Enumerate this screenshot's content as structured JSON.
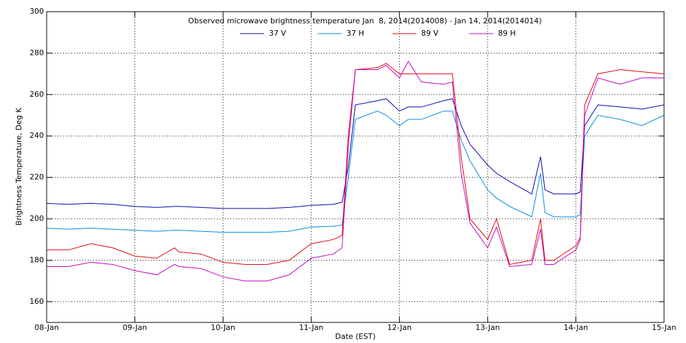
{
  "chart_data": {
    "type": "line",
    "title": "Observed microwave brightness temperature Jan  8, 2014(2014008) - Jan 14, 2014(2014014)",
    "xlabel": "Date (EST)",
    "ylabel": "Brightness Temperature, Deg K",
    "x": [
      8,
      8.25,
      8.5,
      8.75,
      9,
      9.25,
      9.45,
      9.5,
      9.75,
      10,
      10.25,
      10.5,
      10.75,
      11,
      11.25,
      11.35,
      11.42,
      11.5,
      11.75,
      11.85,
      12,
      12.1,
      12.25,
      12.5,
      12.6,
      12.7,
      12.8,
      13,
      13.1,
      13.25,
      13.5,
      13.6,
      13.65,
      13.75,
      14,
      14.05,
      14.1,
      14.25,
      14.5,
      14.75,
      15
    ],
    "series": [
      {
        "name": "37 V",
        "color": "#0000b0",
        "values": [
          207.5,
          207,
          207.5,
          207,
          206,
          205.5,
          206,
          206,
          205.5,
          205,
          205,
          205,
          205.5,
          206.5,
          207,
          208,
          225,
          255,
          257,
          258,
          252,
          254,
          254,
          257,
          258,
          245,
          236,
          226,
          222,
          218,
          212,
          230,
          214,
          212,
          212,
          213,
          245,
          255,
          254,
          253,
          255
        ]
      },
      {
        "name": "37 H",
        "color": "#0088e0",
        "values": [
          195.5,
          195,
          195.5,
          195,
          194.5,
          194,
          194.5,
          194.5,
          194,
          193.5,
          193.5,
          193.5,
          194,
          196,
          196.5,
          197,
          220,
          248,
          252,
          250,
          245,
          248,
          248,
          252,
          252,
          238,
          228,
          214,
          210,
          206,
          201,
          222,
          203,
          201,
          201,
          202,
          240,
          250,
          248,
          245,
          250
        ]
      },
      {
        "name": "89 V",
        "color": "#e00000",
        "values": [
          185,
          185,
          188,
          186,
          182,
          181,
          186,
          184,
          183,
          179,
          178,
          178,
          180,
          188,
          190,
          192,
          240,
          272,
          273,
          275,
          270,
          270,
          270,
          270,
          270,
          230,
          200,
          190,
          200,
          178,
          180,
          200,
          180,
          180,
          187,
          191,
          255,
          270,
          272,
          271,
          270
        ]
      },
      {
        "name": "89 H",
        "color": "#c000c0",
        "values": [
          177,
          177,
          179,
          178,
          175,
          173,
          178,
          177,
          176,
          172,
          170,
          170,
          173,
          181,
          183,
          186,
          235,
          272,
          272,
          274,
          268,
          276,
          266,
          265,
          266,
          222,
          198,
          186,
          196,
          177,
          178,
          195,
          178,
          178,
          185,
          190,
          250,
          268,
          265,
          268,
          268
        ]
      }
    ],
    "xlim": [
      8,
      15
    ],
    "xticks": [
      {
        "value": 8,
        "label": "08-Jan"
      },
      {
        "value": 9,
        "label": "09-Jan"
      },
      {
        "value": 10,
        "label": "10-Jan"
      },
      {
        "value": 11,
        "label": "11-Jan"
      },
      {
        "value": 12,
        "label": "12-Jan"
      },
      {
        "value": 13,
        "label": "13-Jan"
      },
      {
        "value": 14,
        "label": "14-Jan"
      },
      {
        "value": 15,
        "label": "15-Jan"
      }
    ],
    "ylim": [
      150,
      300
    ],
    "yticks": [
      160,
      180,
      200,
      220,
      240,
      260,
      280,
      300
    ],
    "grid": true
  }
}
